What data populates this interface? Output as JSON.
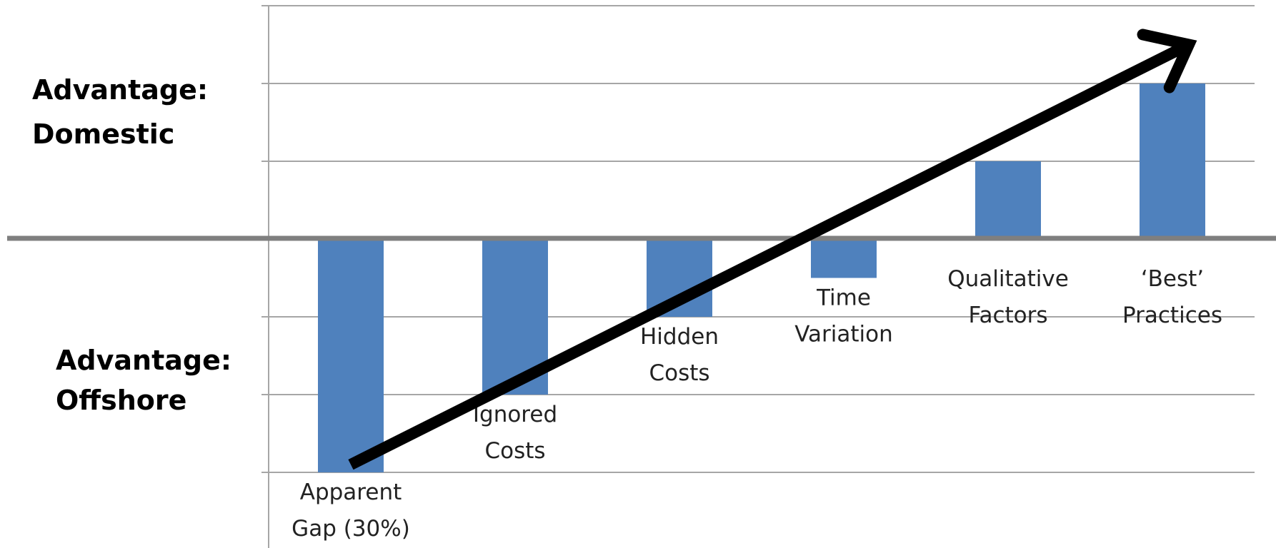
{
  "chart_data": {
    "type": "bar",
    "categories": [
      [
        "Apparent",
        "Gap (30%)"
      ],
      [
        "Ignored",
        "Costs"
      ],
      [
        "Hidden",
        "Costs"
      ],
      [
        "Time",
        "Variation"
      ],
      [
        "Qualitative",
        "Factors"
      ],
      [
        "‘Best’",
        "Practices"
      ]
    ],
    "values": [
      -3,
      -2,
      -1,
      -0.5,
      1,
      2
    ],
    "ylim": [
      -4,
      3
    ],
    "grid": true,
    "colors": {
      "bar": "#4f81bd",
      "grid": "#a6a6a6",
      "baseline": "#7f7f7f",
      "arrow": "#000000"
    },
    "annotations": {
      "domestic": [
        "Advantage:",
        "Domestic"
      ],
      "offshore": [
        "Advantage:",
        "Offshore"
      ],
      "trend_arrow": {
        "from": [
          0,
          -2.9
        ],
        "to": [
          5.1,
          2.5
        ]
      }
    }
  }
}
